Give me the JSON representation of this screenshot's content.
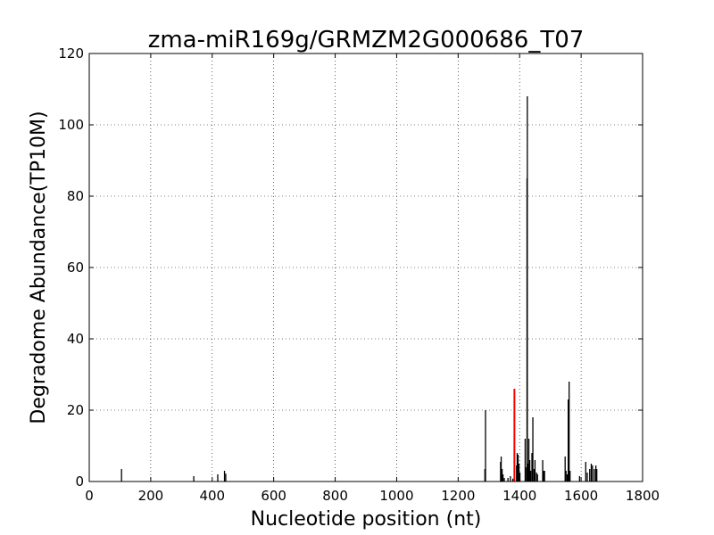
{
  "chart_data": {
    "type": "bar",
    "title": "zma-miR169g/GRMZM2G000686_T07",
    "xlabel": "Nucleotide position (nt)",
    "ylabel": "Degradome Abundance(TP10M)",
    "xlim": [
      0,
      1800
    ],
    "ylim": [
      0,
      120
    ],
    "xticks": [
      0,
      200,
      400,
      600,
      800,
      1000,
      1200,
      1400,
      1600,
      1800
    ],
    "yticks": [
      0,
      20,
      40,
      60,
      80,
      100,
      120
    ],
    "grid": true,
    "colors": {
      "default": "#000000",
      "highlight": "#ff0000"
    },
    "series": [
      {
        "values": [
          [
            105,
            3.5
          ],
          [
            340,
            1.5
          ],
          [
            418,
            2.0
          ],
          [
            440,
            3.0
          ],
          [
            444,
            2.2
          ],
          [
            1287,
            3.5
          ],
          [
            1289,
            20.0
          ],
          [
            1338,
            5.5
          ],
          [
            1340,
            7.0
          ],
          [
            1343,
            3.5
          ],
          [
            1346,
            2.0
          ],
          [
            1350,
            1.0
          ],
          [
            1362,
            1.0
          ],
          [
            1370,
            1.5
          ],
          [
            1378,
            0.8
          ],
          [
            1390,
            4.5
          ],
          [
            1392,
            8.0
          ],
          [
            1395,
            7.5
          ],
          [
            1398,
            5.0
          ],
          [
            1401,
            2.5
          ],
          [
            1418,
            12.0
          ],
          [
            1422,
            4.0
          ],
          [
            1424,
            85.0
          ],
          [
            1425,
            108.0
          ],
          [
            1428,
            5.0
          ],
          [
            1430,
            12.0
          ],
          [
            1433,
            6.0
          ],
          [
            1436,
            3.0
          ],
          [
            1440,
            8.0
          ],
          [
            1443,
            18.0
          ],
          [
            1447,
            3.5
          ],
          [
            1450,
            6.0
          ],
          [
            1455,
            2.5
          ],
          [
            1458,
            2.0
          ],
          [
            1475,
            6.0
          ],
          [
            1478,
            3.0
          ],
          [
            1481,
            3.0
          ],
          [
            1548,
            7.0
          ],
          [
            1551,
            3.0
          ],
          [
            1555,
            2.0
          ],
          [
            1558,
            23.0
          ],
          [
            1561,
            28.0
          ],
          [
            1564,
            3.0
          ],
          [
            1595,
            1.5
          ],
          [
            1615,
            5.5
          ],
          [
            1620,
            2.5
          ],
          [
            1628,
            3.5
          ],
          [
            1633,
            5.0
          ],
          [
            1637,
            4.5
          ],
          [
            1643,
            3.5
          ],
          [
            1648,
            4.5
          ],
          [
            1651,
            3.5
          ]
        ],
        "color": "#000000"
      },
      {
        "values": [
          [
            1383,
            26.0
          ]
        ],
        "color": "#ff0000"
      }
    ]
  }
}
